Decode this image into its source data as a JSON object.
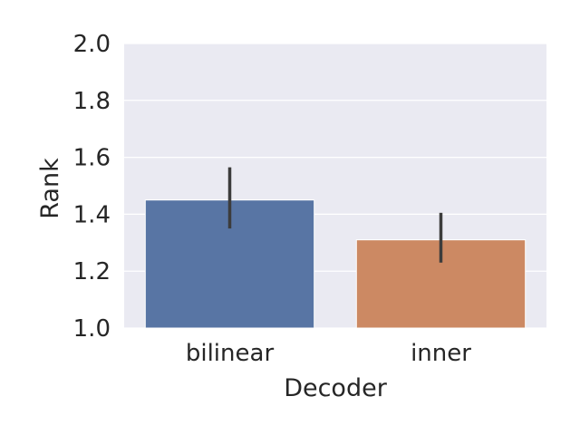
{
  "chart_data": {
    "type": "bar",
    "title": "",
    "xlabel": "Decoder",
    "ylabel": "Rank",
    "categories": [
      "bilinear",
      "inner"
    ],
    "values": [
      1.45,
      1.31
    ],
    "error_bars": [
      [
        1.35,
        1.565
      ],
      [
        1.23,
        1.405
      ]
    ],
    "ylim": [
      1.0,
      2.0
    ],
    "yticks": [
      1.0,
      1.2,
      1.4,
      1.6,
      1.8,
      2.0
    ],
    "ytick_labels": [
      "1.0",
      "1.2",
      "1.4",
      "1.6",
      "1.8",
      "2.0"
    ],
    "grid": true,
    "colors": [
      "#5875a4",
      "#cc8963"
    ],
    "background": "#eaeaf2",
    "errorbar_color": "#3c3c3c"
  }
}
